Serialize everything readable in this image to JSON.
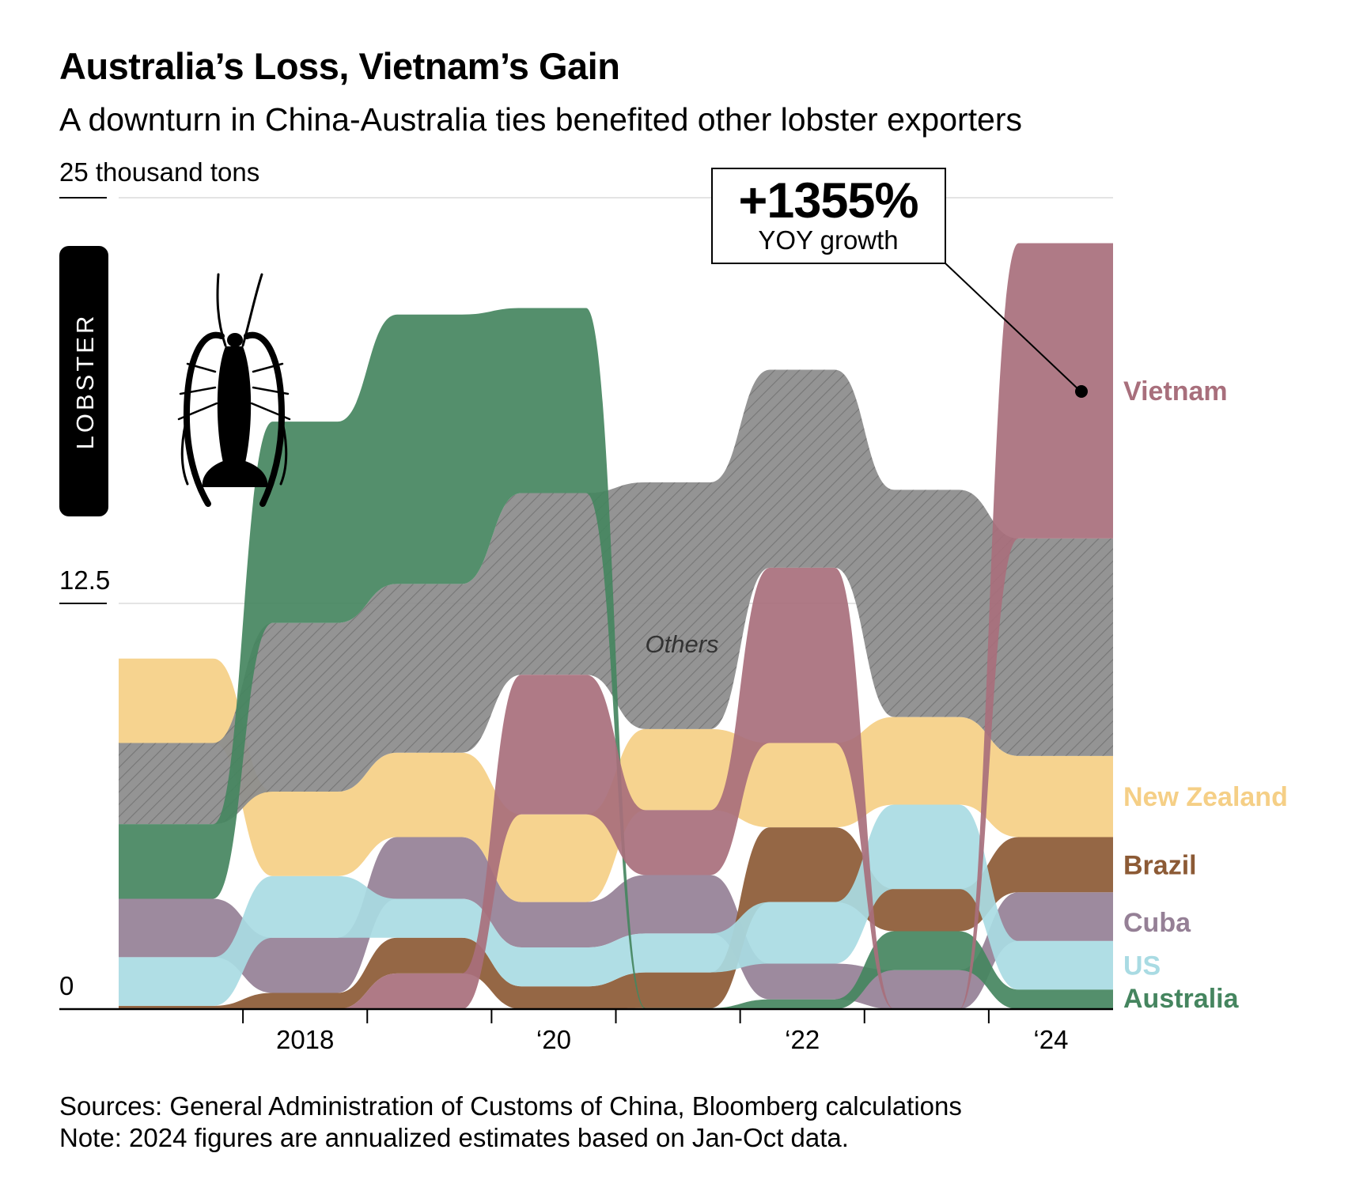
{
  "title": "Australia’s Loss, Vietnam’s Gain",
  "subtitle": "A downturn in China-Australia ties benefited other lobster exporters",
  "ylabel": "25 thousand tons",
  "badge": "LOBSTER",
  "annotation": {
    "value": "+1355%",
    "label": "YOY growth"
  },
  "others_label": "Others",
  "sources": "Sources: General Administration of Customs of China, Bloomberg calculations",
  "note": "Note: 2024 figures are annualized estimates based on Jan-Oct data.",
  "colors": {
    "Vietnam": "#a86f7c",
    "New Zealand": "#f5cf86",
    "Brazil": "#8c5a35",
    "US": "#a9dbe3",
    "Cuba": "#958096",
    "Australia": "#45855f",
    "Others": "#8c8c8c"
  },
  "chart_data": {
    "type": "area",
    "subtype": "ranked stacked area (bump-style), series re-ordered by size each year",
    "x": [
      "2017",
      "2018",
      "2019",
      "2020",
      "2021",
      "2022",
      "2023",
      "2024"
    ],
    "xticklabels": [
      "2018",
      "‘20",
      "‘22",
      "‘24"
    ],
    "yticks": [
      "0",
      "12.5"
    ],
    "ylim": [
      0,
      25
    ],
    "yunit": "thousand tons",
    "series": [
      {
        "name": "Vietnam",
        "values": [
          0,
          0,
          1.1,
          4.3,
          2.0,
          5.4,
          0,
          9.1
        ]
      },
      {
        "name": "New Zealand",
        "values": [
          2.6,
          2.6,
          2.6,
          2.7,
          2.5,
          2.6,
          2.7,
          2.5
        ]
      },
      {
        "name": "Brazil",
        "values": [
          0.1,
          0.5,
          1.1,
          0.7,
          1.1,
          2.3,
          1.3,
          1.7
        ]
      },
      {
        "name": "US",
        "values": [
          1.5,
          1.9,
          1.2,
          1.2,
          1.2,
          1.9,
          2.6,
          1.5
        ]
      },
      {
        "name": "Cuba",
        "values": [
          1.8,
          1.7,
          1.9,
          1.4,
          1.8,
          1.1,
          1.2,
          1.5
        ]
      },
      {
        "name": "Australia",
        "values": [
          2.3,
          6.2,
          8.3,
          5.7,
          0.03,
          0.3,
          1.2,
          0.6
        ]
      },
      {
        "name": "Others",
        "values": [
          2.5,
          5.2,
          5.2,
          5.6,
          7.6,
          6.1,
          7.0,
          6.7
        ]
      }
    ],
    "legend": "right, end labels",
    "grid": true
  }
}
